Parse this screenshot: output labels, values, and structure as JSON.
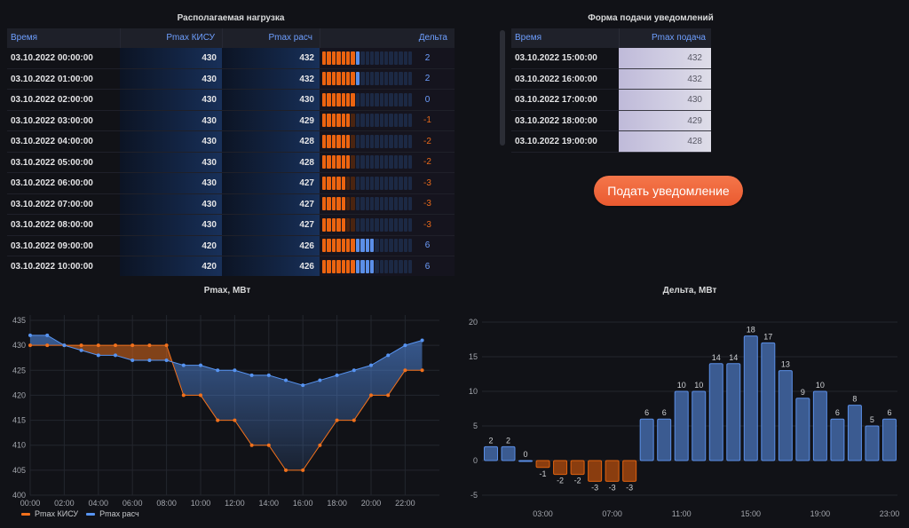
{
  "left_table": {
    "title": "Располагаемая нагрузка",
    "columns": {
      "time": "Время",
      "pmax_kisu": "Pmax КИСУ",
      "pmax_calc": "Pmax расч",
      "delta": "Дельта"
    },
    "gauge": {
      "min": -10.5,
      "max": 18,
      "threshold": 0,
      "low_color": "#ec6410",
      "low_dim_color": "#4a2410",
      "high_color": "#5b8fe8",
      "high_dim_color": "#1c2944"
    },
    "delta_colors": {
      "positive": "#6e9fff",
      "negative": "#e8691a"
    },
    "rows": [
      {
        "time": "03.10.2022 00:00:00",
        "pmax_kisu": 430,
        "pmax_calc": 432,
        "delta": 2
      },
      {
        "time": "03.10.2022 01:00:00",
        "pmax_kisu": 430,
        "pmax_calc": 432,
        "delta": 2
      },
      {
        "time": "03.10.2022 02:00:00",
        "pmax_kisu": 430,
        "pmax_calc": 430,
        "delta": 0
      },
      {
        "time": "03.10.2022 03:00:00",
        "pmax_kisu": 430,
        "pmax_calc": 429,
        "delta": -1
      },
      {
        "time": "03.10.2022 04:00:00",
        "pmax_kisu": 430,
        "pmax_calc": 428,
        "delta": -2
      },
      {
        "time": "03.10.2022 05:00:00",
        "pmax_kisu": 430,
        "pmax_calc": 428,
        "delta": -2
      },
      {
        "time": "03.10.2022 06:00:00",
        "pmax_kisu": 430,
        "pmax_calc": 427,
        "delta": -3
      },
      {
        "time": "03.10.2022 07:00:00",
        "pmax_kisu": 430,
        "pmax_calc": 427,
        "delta": -3
      },
      {
        "time": "03.10.2022 08:00:00",
        "pmax_kisu": 430,
        "pmax_calc": 427,
        "delta": -3
      },
      {
        "time": "03.10.2022 09:00:00",
        "pmax_kisu": 420,
        "pmax_calc": 426,
        "delta": 6
      },
      {
        "time": "03.10.2022 10:00:00",
        "pmax_kisu": 420,
        "pmax_calc": 426,
        "delta": 6
      }
    ]
  },
  "right_table": {
    "title": "Форма подачи уведомлений",
    "columns": {
      "time": "Время",
      "pmax_submit": "Pmax подача"
    },
    "rows": [
      {
        "time": "03.10.2022 15:00:00",
        "pmax_submit": 432
      },
      {
        "time": "03.10.2022 16:00:00",
        "pmax_submit": 432
      },
      {
        "time": "03.10.2022 17:00:00",
        "pmax_submit": 430
      },
      {
        "time": "03.10.2022 18:00:00",
        "pmax_submit": 429
      },
      {
        "time": "03.10.2022 19:00:00",
        "pmax_submit": 428
      }
    ]
  },
  "submit_button": {
    "label": "Подать уведомление"
  },
  "chart_data": [
    {
      "type": "line",
      "title": "Pmax, МВт",
      "xlabel": "",
      "ylabel": "",
      "x": [
        "00:00",
        "01:00",
        "02:00",
        "03:00",
        "04:00",
        "05:00",
        "06:00",
        "07:00",
        "08:00",
        "09:00",
        "10:00",
        "11:00",
        "12:00",
        "13:00",
        "14:00",
        "15:00",
        "16:00",
        "17:00",
        "18:00",
        "19:00",
        "20:00",
        "21:00",
        "22:00",
        "23:00"
      ],
      "series": [
        {
          "name": "Pmax КИСУ",
          "color": "#f2711c",
          "values": [
            430,
            430,
            430,
            430,
            430,
            430,
            430,
            430,
            430,
            420,
            420,
            415,
            415,
            410,
            410,
            405,
            405,
            410,
            415,
            415,
            420,
            420,
            425,
            425
          ]
        },
        {
          "name": "Pmax расч",
          "color": "#5794f2",
          "values": [
            432,
            432,
            430,
            429,
            428,
            428,
            427,
            427,
            427,
            426,
            426,
            425,
            425,
            424,
            424,
            423,
            422,
            423,
            424,
            425,
            426,
            428,
            430,
            431
          ]
        }
      ],
      "ylim": [
        400,
        435
      ],
      "yticks": [
        "400",
        "405",
        "410",
        "415",
        "420",
        "425",
        "430",
        "435"
      ],
      "xticks": [
        "00:00",
        "02:00",
        "04:00",
        "06:00",
        "08:00",
        "10:00",
        "12:00",
        "14:00",
        "16:00",
        "18:00",
        "20:00",
        "22:00"
      ],
      "grid": true,
      "legend": "bottom-left"
    },
    {
      "type": "bar",
      "title": "Дельта, МВт",
      "xlabel": "",
      "ylabel": "",
      "categories": [
        "00:00",
        "01:00",
        "02:00",
        "03:00",
        "04:00",
        "05:00",
        "06:00",
        "07:00",
        "08:00",
        "09:00",
        "10:00",
        "11:00",
        "12:00",
        "13:00",
        "14:00",
        "15:00",
        "16:00",
        "17:00",
        "18:00",
        "19:00",
        "20:00",
        "21:00",
        "22:00",
        "23:00"
      ],
      "values": [
        2,
        2,
        0,
        -1,
        -2,
        -2,
        -3,
        -3,
        -3,
        6,
        6,
        10,
        10,
        14,
        14,
        18,
        17,
        13,
        9,
        10,
        6,
        8,
        5,
        6
      ],
      "positive_color": "#5794f2",
      "negative_color": "#f2711c",
      "ylim": [
        -5,
        20
      ],
      "yticks": [
        "-5",
        "0",
        "5",
        "10",
        "15",
        "20"
      ],
      "xticks": [
        "03:00",
        "07:00",
        "11:00",
        "15:00",
        "19:00",
        "23:00"
      ],
      "data_labels": true,
      "grid": true,
      "legend": "none"
    }
  ]
}
